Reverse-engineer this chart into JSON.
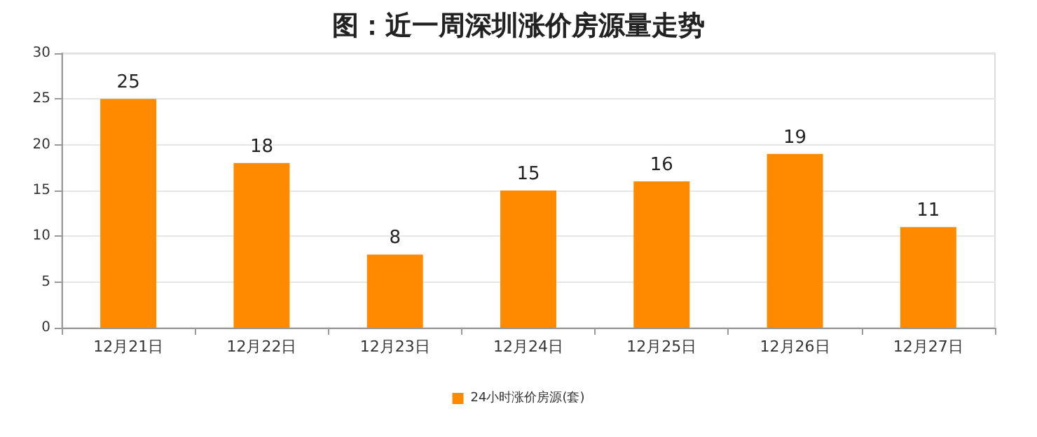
{
  "chart_data": {
    "type": "bar",
    "title": "图：近一周深圳涨价房源量走势",
    "categories": [
      "12月21日",
      "12月22日",
      "12月23日",
      "12月24日",
      "12月25日",
      "12月26日",
      "12月27日"
    ],
    "series": [
      {
        "name": "24小时涨价房源(套)",
        "color": "#ff8a00",
        "values": [
          25,
          18,
          8,
          15,
          16,
          19,
          11
        ]
      }
    ],
    "ylim": [
      0,
      30
    ],
    "yticks": [
      0,
      5,
      10,
      15,
      20,
      25,
      30
    ],
    "grid": "y",
    "legend": "bottom",
    "data_labels": true
  }
}
